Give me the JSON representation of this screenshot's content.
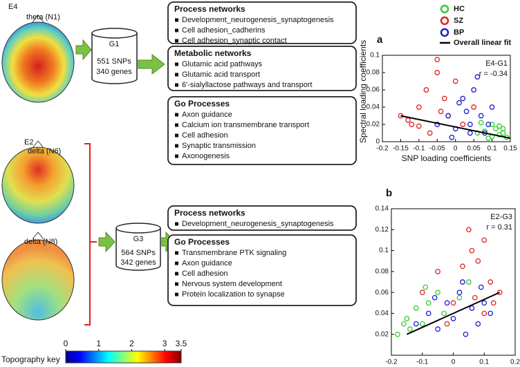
{
  "topographies": [
    {
      "electrode": "E4",
      "component": "theta (N1)"
    },
    {
      "electrode": "E2",
      "component": "delta (N6)"
    },
    {
      "component": "delta (N8)"
    }
  ],
  "gene_sets": [
    {
      "name": "G1",
      "snps": "551 SNPs",
      "genes": "340 genes"
    },
    {
      "name": "G3",
      "snps": "564 SNPs",
      "genes": "342 genes"
    }
  ],
  "boxes": [
    {
      "title": "Process networks",
      "items": [
        "Development_neurogenesis_synaptogenesis",
        "Cell adhesion_cadherins",
        "Cell adhesion_synaptic contact"
      ]
    },
    {
      "title": "Metabolic networks",
      "items": [
        "Glutamic acid pathways",
        "Glutamic acid transport",
        "6'-sialyllactose pathways and transport"
      ]
    },
    {
      "title": "Go Processes",
      "items": [
        "Axon guidance",
        "Calcium ion transmembrane transport",
        "Cell adhesion",
        "Synaptic transmission",
        "Axonogenesis"
      ]
    },
    {
      "title": "Process networks",
      "items": [
        "Development_neurogenesis_synaptogenesis"
      ]
    },
    {
      "title": "Go Processes",
      "items": [
        "Transmembrane PTK signaling",
        "Axon guidance",
        "Cell adhesion",
        "Nervous system development",
        "Protein localization to synapse"
      ]
    }
  ],
  "chart_data": [
    {
      "type": "scatter",
      "panel": "a",
      "xlabel": "SNP loading coefficients",
      "ylabel": "Spectral loading coefficients",
      "annotations": [
        "E4-G1",
        "r = -0.34"
      ],
      "xlim": [
        -0.2,
        0.15
      ],
      "xticks": [
        -0.2,
        -0.15,
        -0.1,
        -0.05,
        0,
        0.05,
        0.1,
        0.15
      ],
      "ylim": [
        0,
        0.1
      ],
      "yticks": [
        0,
        0.02,
        0.04,
        0.06,
        0.08,
        0.1
      ],
      "series": [
        {
          "name": "HC",
          "color": "#33cc33",
          "x": [
            0.08,
            0.1,
            0.12,
            0.13,
            0.14,
            0.11,
            0.09,
            0.12,
            0.06,
            0.1,
            0.13,
            0.07
          ],
          "values": [
            0.012,
            0.02,
            0.008,
            0.01,
            0.005,
            0.015,
            0.004,
            0.018,
            0.01,
            0.006,
            0.015,
            0.022
          ]
        },
        {
          "name": "SZ",
          "color": "#e02020",
          "x": [
            -0.15,
            -0.12,
            -0.1,
            -0.08,
            -0.05,
            -0.03,
            -0.02,
            0,
            0.02,
            -0.07,
            -0.1,
            -0.04,
            -0.05,
            0.05,
            -0.13
          ],
          "values": [
            0.03,
            0.02,
            0.04,
            0.06,
            0.095,
            0.05,
            0.03,
            0.07,
            0.02,
            0.01,
            0.018,
            0.035,
            0.08,
            0.04,
            0.025
          ]
        },
        {
          "name": "BP",
          "color": "#1a1ad0",
          "x": [
            -0.05,
            -0.02,
            0,
            0.02,
            0.04,
            0.05,
            0.07,
            0.08,
            0.1,
            0.03,
            -0.01,
            0.06,
            0.09,
            0.01,
            0.04
          ],
          "values": [
            0.02,
            0.03,
            0.015,
            0.05,
            0.02,
            0.06,
            0.03,
            0.01,
            0.04,
            0.035,
            0.005,
            0.075,
            0.02,
            0.045,
            0.01
          ]
        }
      ],
      "fit": {
        "name": "Overall linear fit",
        "color": "#000000",
        "x": [
          -0.15,
          0.15
        ],
        "values": [
          0.03,
          0.004
        ]
      }
    },
    {
      "type": "scatter",
      "panel": "b",
      "annotations": [
        "E2-G3",
        "r = 0.31"
      ],
      "xlim": [
        -0.2,
        0.2
      ],
      "xticks": [
        -0.2,
        -0.1,
        0,
        0.1,
        0.2
      ],
      "ylim": [
        0,
        0.14
      ],
      "yticks": [
        0.02,
        0.04,
        0.06,
        0.08,
        0.1,
        0.12,
        0.14
      ],
      "series": [
        {
          "color": "#33cc33",
          "x": [
            -0.18,
            -0.15,
            -0.12,
            -0.1,
            -0.08,
            -0.05,
            -0.14,
            -0.03,
            0.02,
            0.05,
            -0.16,
            -0.09
          ],
          "values": [
            0.02,
            0.035,
            0.045,
            0.03,
            0.05,
            0.06,
            0.025,
            0.04,
            0.055,
            0.07,
            0.03,
            0.065
          ]
        },
        {
          "color": "#e02020",
          "x": [
            -0.1,
            -0.05,
            0,
            0.05,
            0.06,
            0.08,
            0.1,
            0.12,
            0.15,
            0.03,
            -0.02,
            0.1,
            0.07,
            0.13
          ],
          "values": [
            0.06,
            0.08,
            0.05,
            0.12,
            0.1,
            0.09,
            0.11,
            0.07,
            0.06,
            0.085,
            0.03,
            0.04,
            0.055,
            0.05
          ]
        },
        {
          "color": "#1a1ad0",
          "x": [
            -0.12,
            -0.08,
            -0.05,
            -0.02,
            0,
            0.02,
            0.04,
            0.06,
            0.08,
            0.1,
            0.12,
            -0.06,
            0.03,
            0.09
          ],
          "values": [
            0.03,
            0.04,
            0.025,
            0.05,
            0.035,
            0.06,
            0.02,
            0.045,
            0.03,
            0.05,
            0.04,
            0.055,
            0.07,
            0.065
          ]
        }
      ],
      "fit": {
        "color": "#000000",
        "x": [
          -0.15,
          0.15
        ],
        "values": [
          0.02,
          0.06
        ]
      }
    },
    {
      "type": "colorbar",
      "title": "Topography key",
      "xlim": [
        0,
        3.5
      ],
      "xticks": [
        0,
        1,
        2,
        3,
        3.5
      ]
    }
  ]
}
